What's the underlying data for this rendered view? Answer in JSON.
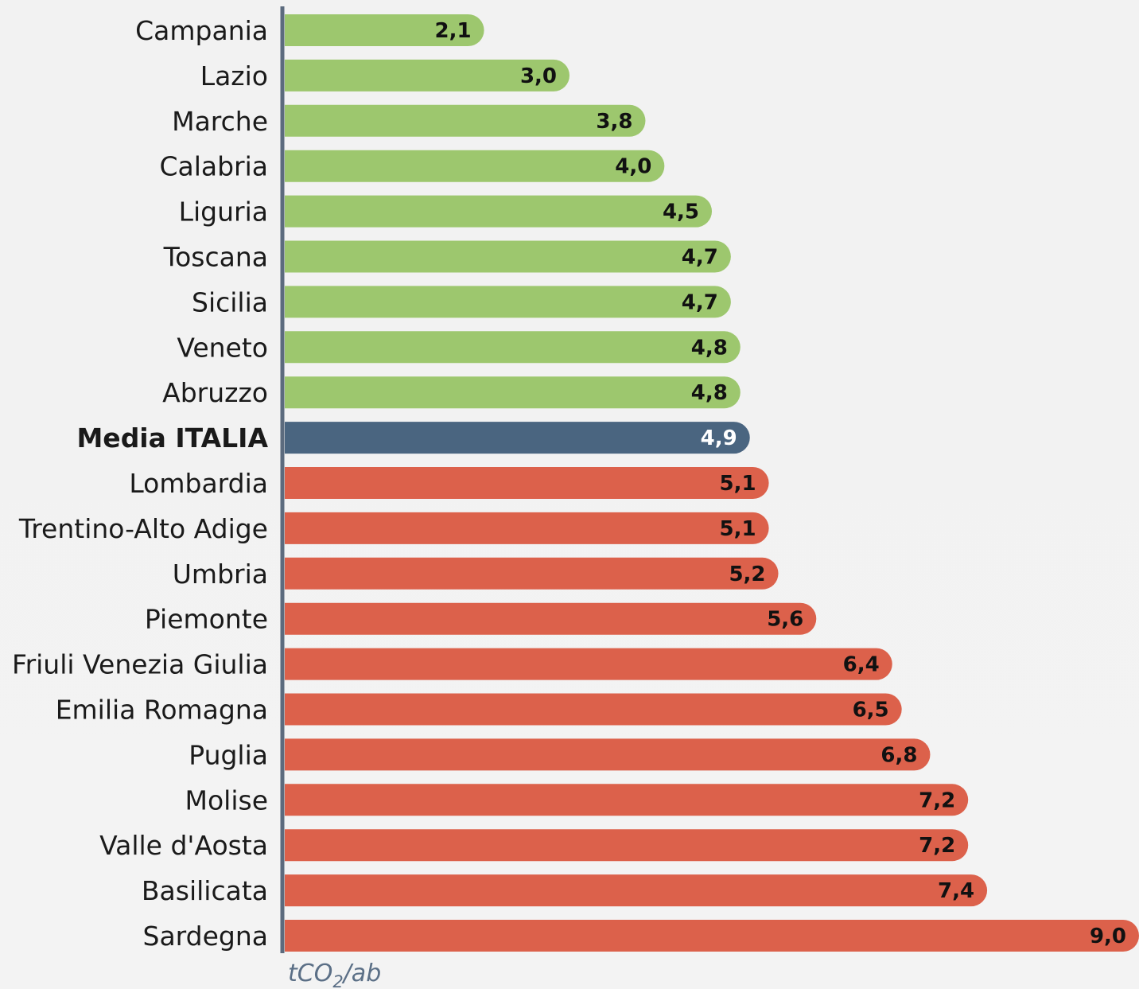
{
  "chart_data": {
    "type": "bar",
    "orientation": "horizontal",
    "categories": [
      "Campania",
      "Lazio",
      "Marche",
      "Calabria",
      "Liguria",
      "Toscana",
      "Sicilia",
      "Veneto",
      "Abruzzo",
      "Media ITALIA",
      "Lombardia",
      "Trentino-Alto Adige",
      "Umbria",
      "Piemonte",
      "Friuli Venezia Giulia",
      "Emilia Romagna",
      "Puglia",
      "Molise",
      "Valle d'Aosta",
      "Basilicata",
      "Sardegna"
    ],
    "values": [
      2.1,
      3.0,
      3.8,
      4.0,
      4.5,
      4.7,
      4.7,
      4.8,
      4.8,
      4.9,
      5.1,
      5.1,
      5.2,
      5.6,
      6.4,
      6.5,
      6.8,
      7.2,
      7.2,
      7.4,
      9.0
    ],
    "value_labels": [
      "2,1",
      "3,0",
      "3,8",
      "4,0",
      "4,5",
      "4,7",
      "4,7",
      "4,8",
      "4,8",
      "4,9",
      "5,1",
      "5,1",
      "5,2",
      "5,6",
      "6,4",
      "6,5",
      "6,8",
      "7,2",
      "7,2",
      "7,4",
      "9,0"
    ],
    "average_category": "Media ITALIA",
    "xlim": [
      0,
      9.0
    ],
    "xlabel_main": "tCO",
    "xlabel_sub": "2",
    "xlabel_tail": "/ab",
    "grid": false,
    "legend": "none",
    "colors": {
      "below_average": "#9dc76e",
      "average": "#4a6580",
      "above_average": "#dc614b",
      "axis": "#5c6b7e",
      "background": "#f2f2f2"
    }
  }
}
